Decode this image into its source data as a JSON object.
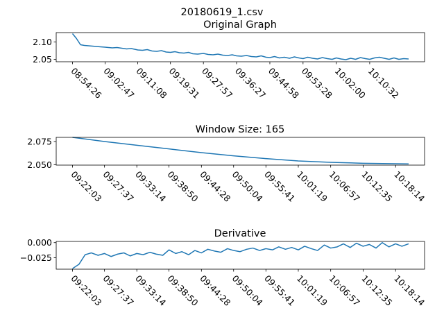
{
  "figure_title": "20180619_1.csv",
  "colors": {
    "line": "#1f77b4",
    "axes": "#000000",
    "background": "#ffffff"
  },
  "chart_data": [
    {
      "type": "line",
      "title": "Original Graph",
      "xlabel": "",
      "ylabel": "",
      "grid": false,
      "legend": "none",
      "ylim": [
        2.043,
        2.127
      ],
      "yticks": [
        2.05,
        2.1
      ],
      "ytick_labels": [
        "2.05",
        "2.10"
      ],
      "x": [
        "08:54:26",
        "08:55:27",
        "08:56:29",
        "08:57:30",
        "08:58:32",
        "08:59:33",
        "09:00:35",
        "09:01:36",
        "09:02:47",
        "09:03:40",
        "09:04:38",
        "09:05:50",
        "09:07:03",
        "09:08:15",
        "09:09:30",
        "09:10:45",
        "09:11:08",
        "09:12:20",
        "09:13:35",
        "09:14:48",
        "09:16:00",
        "09:17:13",
        "09:18:25",
        "09:19:31",
        "09:20:40",
        "09:21:50",
        "09:22:58",
        "09:24:08",
        "09:25:15",
        "09:26:30",
        "09:27:57",
        "09:29:10",
        "09:30:25",
        "09:31:40",
        "09:32:55",
        "09:34:10",
        "09:35:20",
        "09:36:27",
        "09:37:40",
        "09:39:00",
        "09:40:15",
        "09:41:30",
        "09:42:45",
        "09:44:00",
        "09:44:58",
        "09:46:10",
        "09:47:25",
        "09:48:40",
        "09:50:00",
        "09:51:15",
        "09:52:25",
        "09:53:28",
        "09:54:40",
        "09:55:55",
        "09:57:10",
        "09:58:25",
        "09:59:40",
        "10:00:55",
        "10:02:00",
        "10:03:10",
        "10:04:25",
        "10:05:40",
        "10:06:55",
        "10:08:10",
        "10:09:25",
        "10:10:32",
        "10:11:45",
        "10:13:00",
        "10:14:15",
        "10:15:30",
        "10:16:45",
        "10:18:00",
        "10:19:15",
        "10:20:30"
      ],
      "x_ticks": [
        "08:54:26",
        "09:02:47",
        "09:11:08",
        "09:19:31",
        "09:27:57",
        "09:36:27",
        "09:44:58",
        "09:53:28",
        "10:02:00",
        "10:10:32"
      ],
      "series": [
        {
          "name": "",
          "values": [
            2.124,
            2.11,
            2.092,
            2.09,
            2.089,
            2.088,
            2.087,
            2.086,
            2.085,
            2.084,
            2.083,
            2.084,
            2.082,
            2.08,
            2.081,
            2.078,
            2.077,
            2.076,
            2.078,
            2.074,
            2.073,
            2.075,
            2.071,
            2.07,
            2.072,
            2.069,
            2.068,
            2.07,
            2.066,
            2.065,
            2.067,
            2.064,
            2.063,
            2.065,
            2.062,
            2.061,
            2.063,
            2.06,
            2.059,
            2.061,
            2.058,
            2.057,
            2.06,
            2.056,
            2.055,
            2.058,
            2.054,
            2.056,
            2.053,
            2.057,
            2.054,
            2.052,
            2.056,
            2.053,
            2.051,
            2.055,
            2.052,
            2.05,
            2.054,
            2.051,
            2.049,
            2.053,
            2.05,
            2.055,
            2.052,
            2.05,
            2.054,
            2.056,
            2.053,
            2.05,
            2.054,
            2.05,
            2.052,
            2.051
          ]
        }
      ]
    },
    {
      "type": "line",
      "title": "Window Size: 165",
      "xlabel": "",
      "ylabel": "",
      "grid": false,
      "legend": "none",
      "ylim": [
        2.0495,
        2.0795
      ],
      "yticks": [
        2.05,
        2.075
      ],
      "ytick_labels": [
        "2.050",
        "2.075"
      ],
      "x": [
        "09:22:03",
        "09:27:37",
        "09:33:14",
        "09:38:50",
        "09:44:28",
        "09:50:04",
        "09:55:41",
        "10:01:19",
        "10:06:57",
        "10:12:35",
        "10:18:14",
        "10:20:30"
      ],
      "x_ticks": [
        "09:22:03",
        "09:27:37",
        "09:33:14",
        "09:38:50",
        "09:44:28",
        "09:50:04",
        "09:55:41",
        "10:01:19",
        "10:06:57",
        "10:12:35",
        "10:18:14"
      ],
      "series": [
        {
          "name": "",
          "values": [
            2.0795,
            2.075,
            2.071,
            2.067,
            2.063,
            2.0595,
            2.0565,
            2.054,
            2.0525,
            2.0515,
            2.051,
            2.0508
          ]
        }
      ]
    },
    {
      "type": "line",
      "title": "Derivative",
      "xlabel": "",
      "ylabel": "",
      "grid": false,
      "legend": "none",
      "ylim": [
        -0.044,
        0.002
      ],
      "yticks": [
        0.0,
        -0.025
      ],
      "ytick_labels": [
        "0.000",
        "−0.025"
      ],
      "x": [
        "09:22:03",
        "09:23:10",
        "09:24:15",
        "09:25:20",
        "09:26:30",
        "09:27:37",
        "09:28:45",
        "09:29:55",
        "09:31:00",
        "09:32:05",
        "09:33:14",
        "09:34:20",
        "09:35:30",
        "09:36:35",
        "09:37:45",
        "09:38:50",
        "09:40:00",
        "09:41:05",
        "09:42:15",
        "09:43:20",
        "09:44:28",
        "09:45:35",
        "09:46:45",
        "09:47:50",
        "09:49:00",
        "09:50:04",
        "09:51:10",
        "09:52:20",
        "09:53:25",
        "09:54:35",
        "09:55:41",
        "09:56:50",
        "09:57:55",
        "09:59:05",
        "10:00:10",
        "10:01:19",
        "10:02:25",
        "10:03:35",
        "10:04:40",
        "10:05:50",
        "10:06:57",
        "10:08:05",
        "10:09:10",
        "10:10:20",
        "10:11:25",
        "10:12:35",
        "10:13:40",
        "10:14:50",
        "10:15:55",
        "10:17:05",
        "10:18:14",
        "10:19:20",
        "10:20:30"
      ],
      "x_ticks": [
        "09:22:03",
        "09:27:37",
        "09:33:14",
        "09:38:50",
        "09:44:28",
        "09:50:04",
        "09:55:41",
        "10:01:19",
        "10:06:57",
        "10:12:35",
        "10:18:14"
      ],
      "series": [
        {
          "name": "",
          "values": [
            -0.043,
            -0.036,
            -0.02,
            -0.017,
            -0.021,
            -0.018,
            -0.023,
            -0.019,
            -0.017,
            -0.022,
            -0.018,
            -0.02,
            -0.016,
            -0.019,
            -0.021,
            -0.012,
            -0.018,
            -0.015,
            -0.02,
            -0.013,
            -0.017,
            -0.011,
            -0.014,
            -0.016,
            -0.01,
            -0.013,
            -0.015,
            -0.011,
            -0.009,
            -0.013,
            -0.01,
            -0.012,
            -0.007,
            -0.011,
            -0.008,
            -0.012,
            -0.006,
            -0.01,
            -0.013,
            -0.004,
            -0.009,
            -0.007,
            -0.002,
            -0.008,
            -0.001,
            -0.006,
            -0.003,
            -0.009,
            0.0,
            -0.007,
            -0.002,
            -0.006,
            -0.002
          ]
        }
      ]
    }
  ]
}
